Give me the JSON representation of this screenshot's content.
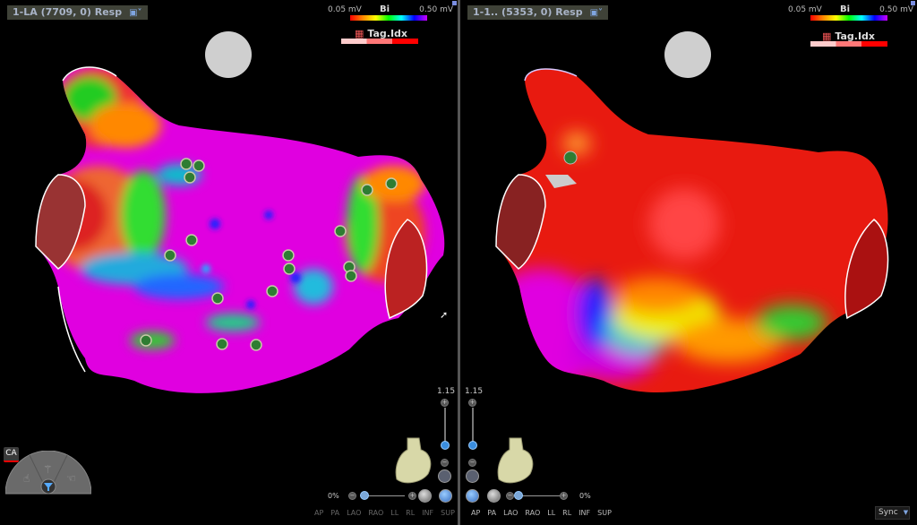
{
  "left_view": {
    "title": "1-LA (7709, 0) Resp",
    "legend": {
      "min": "0.05 mV",
      "max": "0.50 mV",
      "label": "Bi",
      "tag_label": "Tag.Idx"
    },
    "zoom": "1.15",
    "transparency": "0%",
    "view_buttons": [
      "AP",
      "PA",
      "LAO",
      "RAO",
      "LL",
      "RL",
      "INF",
      "SUP"
    ],
    "view_buttons_active": false
  },
  "right_view": {
    "title": "1-1.. (5353, 0) Resp",
    "legend": {
      "min": "0.05 mV",
      "max": "0.50 mV",
      "label": "Bi",
      "tag_label": "Tag.Idx"
    },
    "zoom": "1.15",
    "transparency": "0%",
    "view_buttons": [
      "AP",
      "PA",
      "LAO",
      "RAO",
      "LL",
      "RL",
      "INF",
      "SUP"
    ],
    "view_buttons_active": true
  },
  "sync": {
    "label": "Sync",
    "icon": "chevron-down-icon"
  },
  "colors": {
    "low_voltage": "#ff0000",
    "high_voltage": "#ee00ee",
    "background": "#000000",
    "tag_dot": "#2e7d32"
  },
  "icons": [
    "layout-icon",
    "sphere-orientation-icon",
    "heart-model-icon",
    "zoom-in-icon",
    "zoom-out-icon",
    "ca-logo-icon",
    "tool-wheel-icon",
    "filter-icon"
  ]
}
